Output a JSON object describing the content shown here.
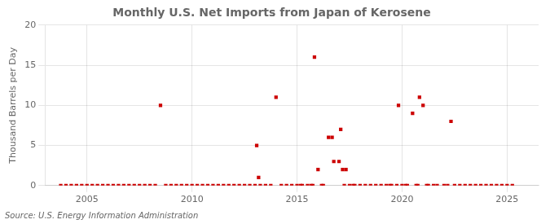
{
  "chart_data": {
    "type": "scatter",
    "title": "Monthly U.S. Net Imports from Japan of Kerosene",
    "ylabel": "Thousand Barrels per Day",
    "annotation": "Source: U.S. Energy Information Administration",
    "color": "#cc0000",
    "marker": "square",
    "grid": true,
    "xlim": [
      2003.0,
      2026.5
    ],
    "xticks": [
      2005,
      2010,
      2015,
      2020,
      2025
    ],
    "ylim": [
      0,
      20
    ],
    "yticks": [
      0,
      5,
      10,
      15,
      20
    ],
    "x": [
      2003.75,
      2004.0,
      2004.25,
      2004.5,
      2004.75,
      2005.0,
      2005.25,
      2005.5,
      2005.75,
      2006.0,
      2006.25,
      2006.5,
      2006.75,
      2007.0,
      2007.25,
      2007.5,
      2007.75,
      2008.0,
      2008.25,
      2008.5,
      2008.75,
      2009.0,
      2009.25,
      2009.5,
      2009.75,
      2010.0,
      2010.25,
      2010.5,
      2010.75,
      2011.0,
      2011.25,
      2011.5,
      2011.75,
      2012.0,
      2012.25,
      2012.5,
      2012.75,
      2013.0,
      2013.08,
      2013.17,
      2013.25,
      2013.5,
      2013.75,
      2014.0,
      2014.25,
      2014.5,
      2014.75,
      2015.0,
      2015.17,
      2015.25,
      2015.5,
      2015.67,
      2015.75,
      2015.83,
      2016.0,
      2016.17,
      2016.25,
      2016.5,
      2016.67,
      2016.75,
      2017.0,
      2017.08,
      2017.17,
      2017.25,
      2017.33,
      2017.5,
      2017.67,
      2017.75,
      2018.0,
      2018.25,
      2018.5,
      2018.75,
      2019.0,
      2019.25,
      2019.42,
      2019.5,
      2019.75,
      2019.83,
      2020.0,
      2020.17,
      2020.25,
      2020.5,
      2020.67,
      2020.75,
      2020.83,
      2021.0,
      2021.17,
      2021.25,
      2021.5,
      2021.67,
      2022.0,
      2022.17,
      2022.33,
      2022.5,
      2022.75,
      2023.0,
      2023.25,
      2023.5,
      2023.75,
      2024.0,
      2024.25,
      2024.5,
      2024.75,
      2025.0,
      2025.25
    ],
    "values": [
      0,
      0,
      0,
      0,
      0,
      0,
      0,
      0,
      0,
      0,
      0,
      0,
      0,
      0,
      0,
      0,
      0,
      0,
      0,
      10,
      0,
      0,
      0,
      0,
      0,
      0,
      0,
      0,
      0,
      0,
      0,
      0,
      0,
      0,
      0,
      0,
      0,
      0,
      5,
      1,
      0,
      0,
      0,
      11,
      0,
      0,
      0,
      0,
      0,
      0,
      0,
      0,
      0,
      16,
      2,
      0,
      0,
      6,
      6,
      3,
      3,
      7,
      2,
      0,
      2,
      0,
      0,
      0,
      0,
      0,
      0,
      0,
      0,
      0,
      0,
      0,
      0,
      10,
      0,
      0,
      0,
      9,
      0,
      0,
      11,
      10,
      0,
      0,
      0,
      0,
      0,
      0,
      8,
      0,
      0,
      0,
      0,
      0,
      0,
      0,
      0,
      0,
      0,
      0,
      0
    ]
  }
}
